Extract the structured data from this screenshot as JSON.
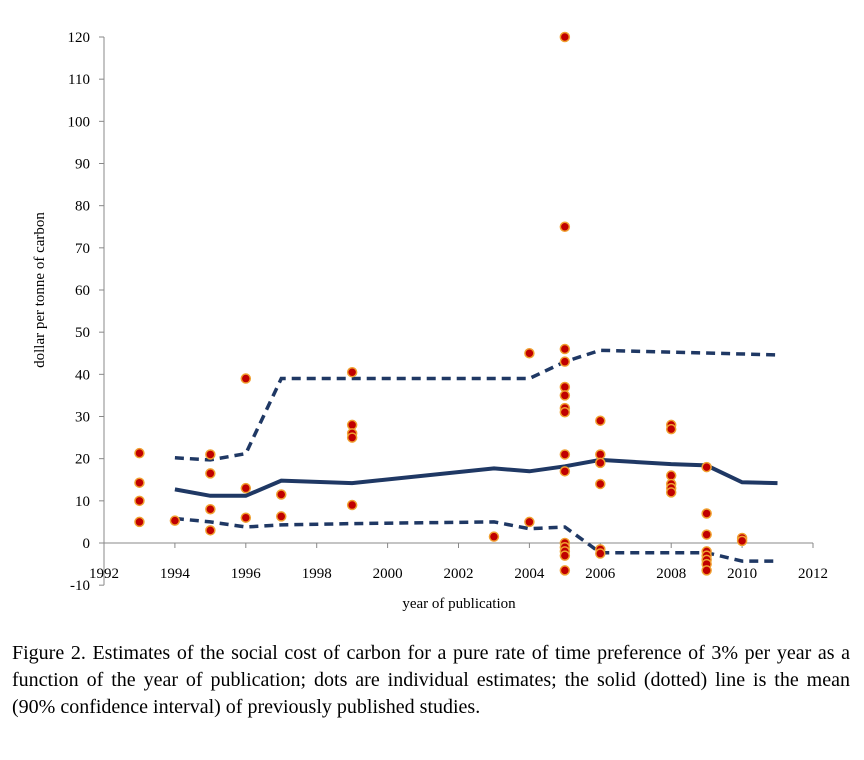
{
  "chart_data": {
    "type": "scatter",
    "xlabel": "year of publication",
    "ylabel": "dollar per tonne of carbon",
    "xlim": [
      1992,
      2012
    ],
    "ylim": [
      -10,
      120
    ],
    "xticks": [
      "1992",
      "1994",
      "1996",
      "1998",
      "2000",
      "2002",
      "2004",
      "2006",
      "2008",
      "2010",
      "2012"
    ],
    "yticks": [
      "-10",
      "0",
      "10",
      "20",
      "30",
      "40",
      "50",
      "60",
      "70",
      "80",
      "90",
      "100",
      "110",
      "120"
    ],
    "grid": false,
    "colors": {
      "line": "#1f3864",
      "dot_fill": "#c00000",
      "dot_edge": "#f0a030"
    },
    "points": [
      [
        1993,
        21.3
      ],
      [
        1993,
        14.3
      ],
      [
        1993,
        10
      ],
      [
        1993,
        5
      ],
      [
        1994,
        5.3
      ],
      [
        1995,
        21
      ],
      [
        1995,
        16.5
      ],
      [
        1995,
        8
      ],
      [
        1995,
        3
      ],
      [
        1996,
        39
      ],
      [
        1996,
        13
      ],
      [
        1996,
        6
      ],
      [
        1997,
        11.5
      ],
      [
        1997,
        6.3
      ],
      [
        1999,
        40.5
      ],
      [
        1999,
        28
      ],
      [
        1999,
        26
      ],
      [
        1999,
        25
      ],
      [
        1999,
        9
      ],
      [
        2003,
        1.5
      ],
      [
        2004,
        45
      ],
      [
        2004,
        5
      ],
      [
        2005,
        120
      ],
      [
        2005,
        75
      ],
      [
        2005,
        46
      ],
      [
        2005,
        43
      ],
      [
        2005,
        37
      ],
      [
        2005,
        35
      ],
      [
        2005,
        32
      ],
      [
        2005,
        31
      ],
      [
        2005,
        21
      ],
      [
        2005,
        17
      ],
      [
        2005,
        0
      ],
      [
        2005,
        -1
      ],
      [
        2005,
        -2
      ],
      [
        2005,
        -3
      ],
      [
        2005,
        -6.5
      ],
      [
        2006,
        29
      ],
      [
        2006,
        21
      ],
      [
        2006,
        19
      ],
      [
        2006,
        14
      ],
      [
        2006,
        -1.5
      ],
      [
        2006,
        -2.5
      ],
      [
        2008,
        28
      ],
      [
        2008,
        27
      ],
      [
        2008,
        16
      ],
      [
        2008,
        14
      ],
      [
        2008,
        13
      ],
      [
        2008,
        12
      ],
      [
        2009,
        18
      ],
      [
        2009,
        7
      ],
      [
        2009,
        2
      ],
      [
        2009,
        -2
      ],
      [
        2009,
        -3
      ],
      [
        2009,
        -4
      ],
      [
        2009,
        -5
      ],
      [
        2009,
        -6.5
      ],
      [
        2010,
        1.2
      ],
      [
        2010,
        0.5
      ]
    ],
    "mean_line": [
      [
        1994,
        12.7
      ],
      [
        1995,
        11.2
      ],
      [
        1996,
        11.2
      ],
      [
        1997,
        14.8
      ],
      [
        1999,
        14.2
      ],
      [
        2003,
        17.7
      ],
      [
        2004,
        17
      ],
      [
        2005,
        18.2
      ],
      [
        2006,
        19.7
      ],
      [
        2008,
        18.7
      ],
      [
        2009,
        18.4
      ],
      [
        2010,
        14.4
      ],
      [
        2011,
        14.2
      ]
    ],
    "upper_ci": [
      [
        1994,
        20.2
      ],
      [
        1995,
        19.7
      ],
      [
        1996,
        21.2
      ],
      [
        1997,
        39
      ],
      [
        2004,
        39
      ],
      [
        2005,
        43
      ],
      [
        2006,
        45.7
      ],
      [
        2011,
        44.6
      ]
    ],
    "lower_ci": [
      [
        1994,
        5.8
      ],
      [
        1995,
        5
      ],
      [
        1996,
        3.8
      ],
      [
        1997,
        4.3
      ],
      [
        1999,
        4.6
      ],
      [
        2003,
        5
      ],
      [
        2004,
        3.4
      ],
      [
        2005,
        3.8
      ],
      [
        2006,
        -2.3
      ],
      [
        2009,
        -2.3
      ],
      [
        2010,
        -4.3
      ],
      [
        2011,
        -4.3
      ]
    ]
  },
  "caption": "Figure 2. Estimates of the social cost of carbon for a pure rate of time preference of 3% per year as a function of the year of publication; dots are individual estimates; the solid (dotted) line is the mean (90% confidence interval) of previously published studies."
}
